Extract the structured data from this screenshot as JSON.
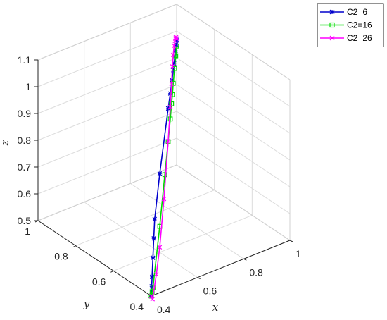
{
  "chart_data": {
    "type": "line",
    "projection": "3d",
    "xlabel": "x",
    "ylabel": "y",
    "zlabel": "z",
    "xlim": [
      0.4,
      1.0
    ],
    "ylim": [
      0.4,
      1.0
    ],
    "zlim": [
      0.5,
      1.1
    ],
    "x_ticks": [
      "0.4",
      "0.6",
      "0.8",
      "1"
    ],
    "y_ticks": [
      "0.4",
      "0.6",
      "0.8",
      "1"
    ],
    "z_ticks": [
      "0.5",
      "0.6",
      "0.7",
      "0.8",
      "0.9",
      "1",
      "1.1"
    ],
    "grid": true,
    "box": true,
    "legend_position": "top-right",
    "series": [
      {
        "name": "C2=6",
        "color": "#0000cc",
        "marker": "asterisk",
        "x": [
          0.4,
          0.41,
          0.419,
          0.439,
          0.459,
          0.48,
          0.6,
          0.8,
          0.85,
          0.89,
          0.92,
          0.94,
          0.96,
          0.975,
          0.99,
          1.0
        ],
        "y": [
          0.4,
          0.41,
          0.419,
          0.439,
          0.459,
          0.48,
          0.6,
          0.8,
          0.85,
          0.89,
          0.92,
          0.94,
          0.96,
          0.975,
          0.99,
          1.0
        ],
        "z": [
          0.5,
          0.528,
          0.556,
          0.611,
          0.667,
          0.722,
          0.794,
          0.874,
          0.889,
          0.906,
          0.919,
          0.928,
          0.939,
          0.947,
          0.958,
          0.967
        ]
      },
      {
        "name": "C2=16",
        "color": "#00dd00",
        "marker": "square",
        "x": [
          0.4,
          0.42,
          0.44,
          0.6,
          0.72,
          0.8,
          0.85,
          0.88,
          0.9,
          0.92,
          0.95,
          0.98,
          1.0
        ],
        "y": [
          0.4,
          0.42,
          0.44,
          0.6,
          0.72,
          0.8,
          0.85,
          0.88,
          0.9,
          0.92,
          0.95,
          0.98,
          1.0
        ],
        "z": [
          0.5,
          0.5,
          0.5,
          0.597,
          0.692,
          0.75,
          0.794,
          0.826,
          0.844,
          0.87,
          0.901,
          0.924,
          0.944
        ]
      },
      {
        "name": "C2=26",
        "color": "#ff00ff",
        "marker": "x",
        "x": [
          0.4,
          0.43,
          0.52,
          0.6,
          0.7,
          0.8,
          0.85,
          0.88,
          0.9,
          0.92,
          0.94,
          0.96,
          0.97,
          0.98,
          0.99,
          1.0
        ],
        "y": [
          0.4,
          0.43,
          0.52,
          0.6,
          0.7,
          0.8,
          0.85,
          0.88,
          0.9,
          0.92,
          0.94,
          0.96,
          0.97,
          0.98,
          0.99,
          1.0
        ],
        "z": [
          0.5,
          0.464,
          0.483,
          0.519,
          0.618,
          0.752,
          0.839,
          0.9,
          0.949,
          0.976,
          0.994,
          0.996,
          0.996,
          0.992,
          0.986,
          0.972
        ]
      }
    ]
  }
}
